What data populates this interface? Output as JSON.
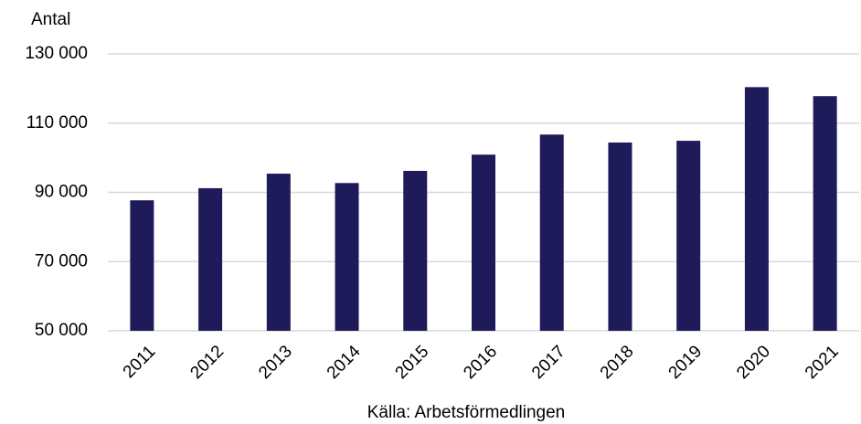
{
  "chart_data": {
    "type": "bar",
    "y_label": "Antal",
    "source": "Källa: Arbetsförmedlingen",
    "categories": [
      "2011",
      "2012",
      "2013",
      "2014",
      "2015",
      "2016",
      "2017",
      "2018",
      "2019",
      "2020",
      "2021"
    ],
    "values": [
      87700,
      91200,
      95400,
      92700,
      96200,
      100900,
      106700,
      104400,
      104900,
      120400,
      117800
    ],
    "color": "#1f1b5b",
    "ylim": [
      50000,
      130000
    ],
    "yticks": [
      {
        "value": 50000,
        "label": "50 000"
      },
      {
        "value": 70000,
        "label": "70 000"
      },
      {
        "value": 90000,
        "label": "90 000"
      },
      {
        "value": 110000,
        "label": "110 000"
      },
      {
        "value": 130000,
        "label": "130 000"
      }
    ],
    "grid": true
  }
}
